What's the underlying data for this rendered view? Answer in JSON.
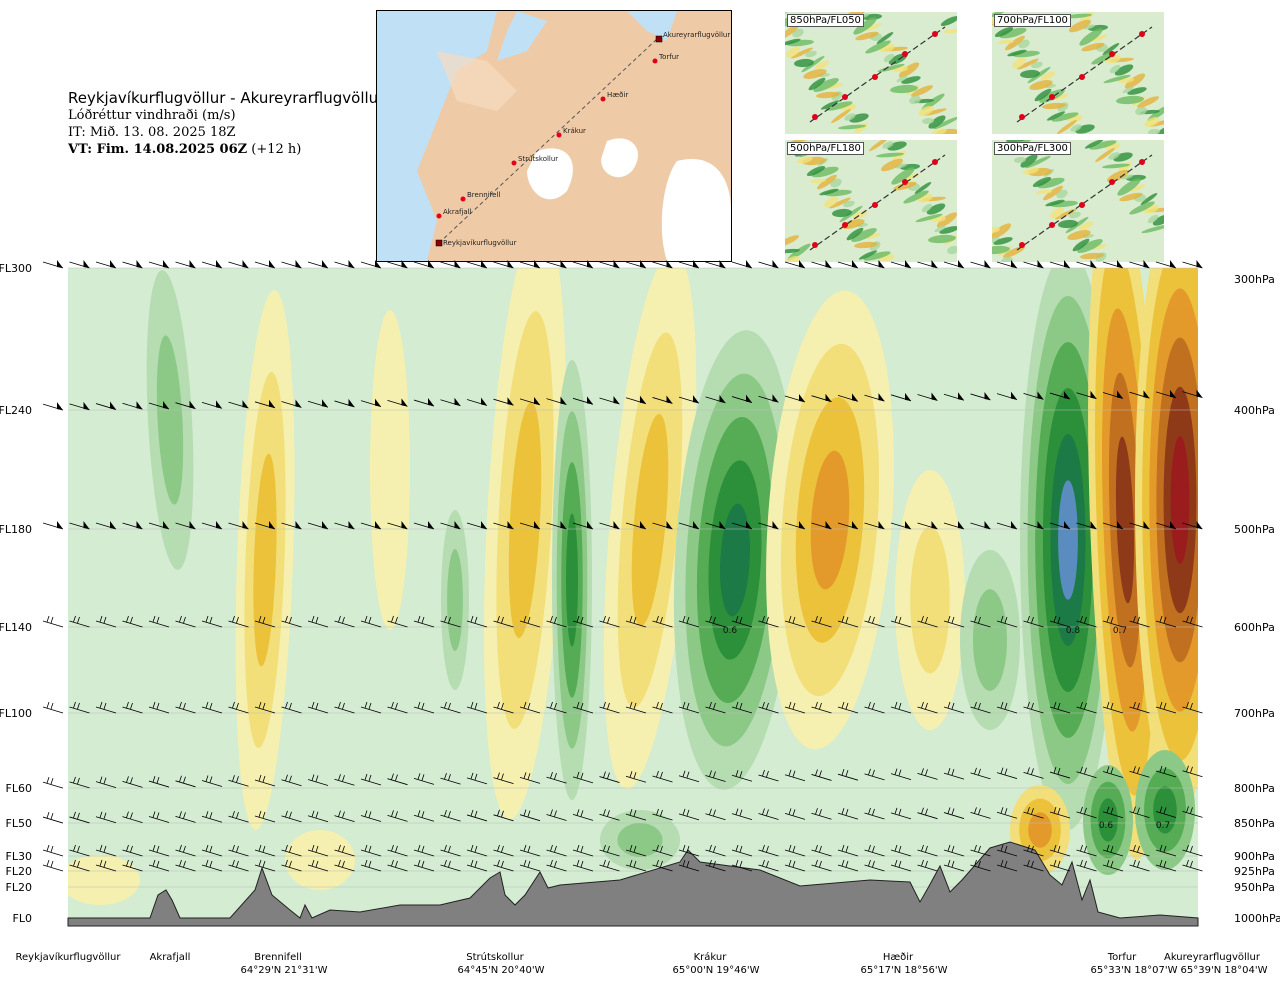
{
  "header": {
    "route": "Reykjavíkurflugvöllur - Akureyrarflugvöllur",
    "variable": "Lóðréttur vindhraði (m/s)",
    "it": "IT: Mið. 13. 08. 2025 18Z",
    "vt_bold": "VT: Fim. 14.08.2025 06Z",
    "vt_rest": " (+12 h)"
  },
  "map": {
    "points": [
      "Akureyrarflugvöllur",
      "Torfur",
      "Hæðir",
      "Krákur",
      "Strútskollur",
      "Brennifell",
      "Akrafjall",
      "Reykjavíkurflugvöllur"
    ]
  },
  "thumbs": [
    {
      "label": "850hPa/FL050"
    },
    {
      "label": "700hPa/FL100"
    },
    {
      "label": "500hPa/FL180"
    },
    {
      "label": "300hPa/FL300"
    }
  ],
  "chart_data": {
    "type": "heatmap",
    "title": "Lóðréttur vindhraði (m/s)",
    "left_axis": [
      "FL300",
      "FL240",
      "FL180",
      "FL140",
      "FL100",
      "FL60",
      "FL50",
      "FL30",
      "FL20",
      "FL20",
      "FL0"
    ],
    "right_axis": [
      "300hPa",
      "400hPa",
      "500hPa",
      "600hPa",
      "700hPa",
      "800hPa",
      "850hPa",
      "900hPa",
      "925hPa",
      "950hPa",
      "1000hPa"
    ],
    "stations": [
      {
        "name": "Reykjavíkurflugvöllur",
        "coord": ""
      },
      {
        "name": "Akrafjall",
        "coord": ""
      },
      {
        "name": "Brennifell",
        "coord": "64°29'N 21°31'W"
      },
      {
        "name": "Strútskollur",
        "coord": "64°45'N 20°40'W"
      },
      {
        "name": "Krákur",
        "coord": "65°00'N 19°46'W"
      },
      {
        "name": "Hæðir",
        "coord": "65°17'N 18°56'W"
      },
      {
        "name": "Torfur",
        "coord": "65°33'N 18°07'W"
      },
      {
        "name": "Akureyrarflugvöllur",
        "coord": "65°39'N 18°04'W"
      }
    ],
    "extrema_labels": [
      "0.6",
      "0.8",
      "0.7",
      "0.6",
      "0.7"
    ],
    "colors": {
      "neutral": "#d3ecd2",
      "up1": "#b6dcb2",
      "up2": "#8cc987",
      "up3": "#55ac55",
      "up4": "#2c8f3a",
      "up5": "#1b7a45",
      "up6": "#5a8cc0",
      "dn1": "#f5f0b0",
      "dn2": "#f2df7a",
      "dn3": "#ecc23a",
      "dn4": "#e39a2b",
      "dn5": "#c0701f",
      "dn6": "#8e3a18",
      "dn7": "#9b1c1c",
      "terrain": "#808080"
    }
  }
}
